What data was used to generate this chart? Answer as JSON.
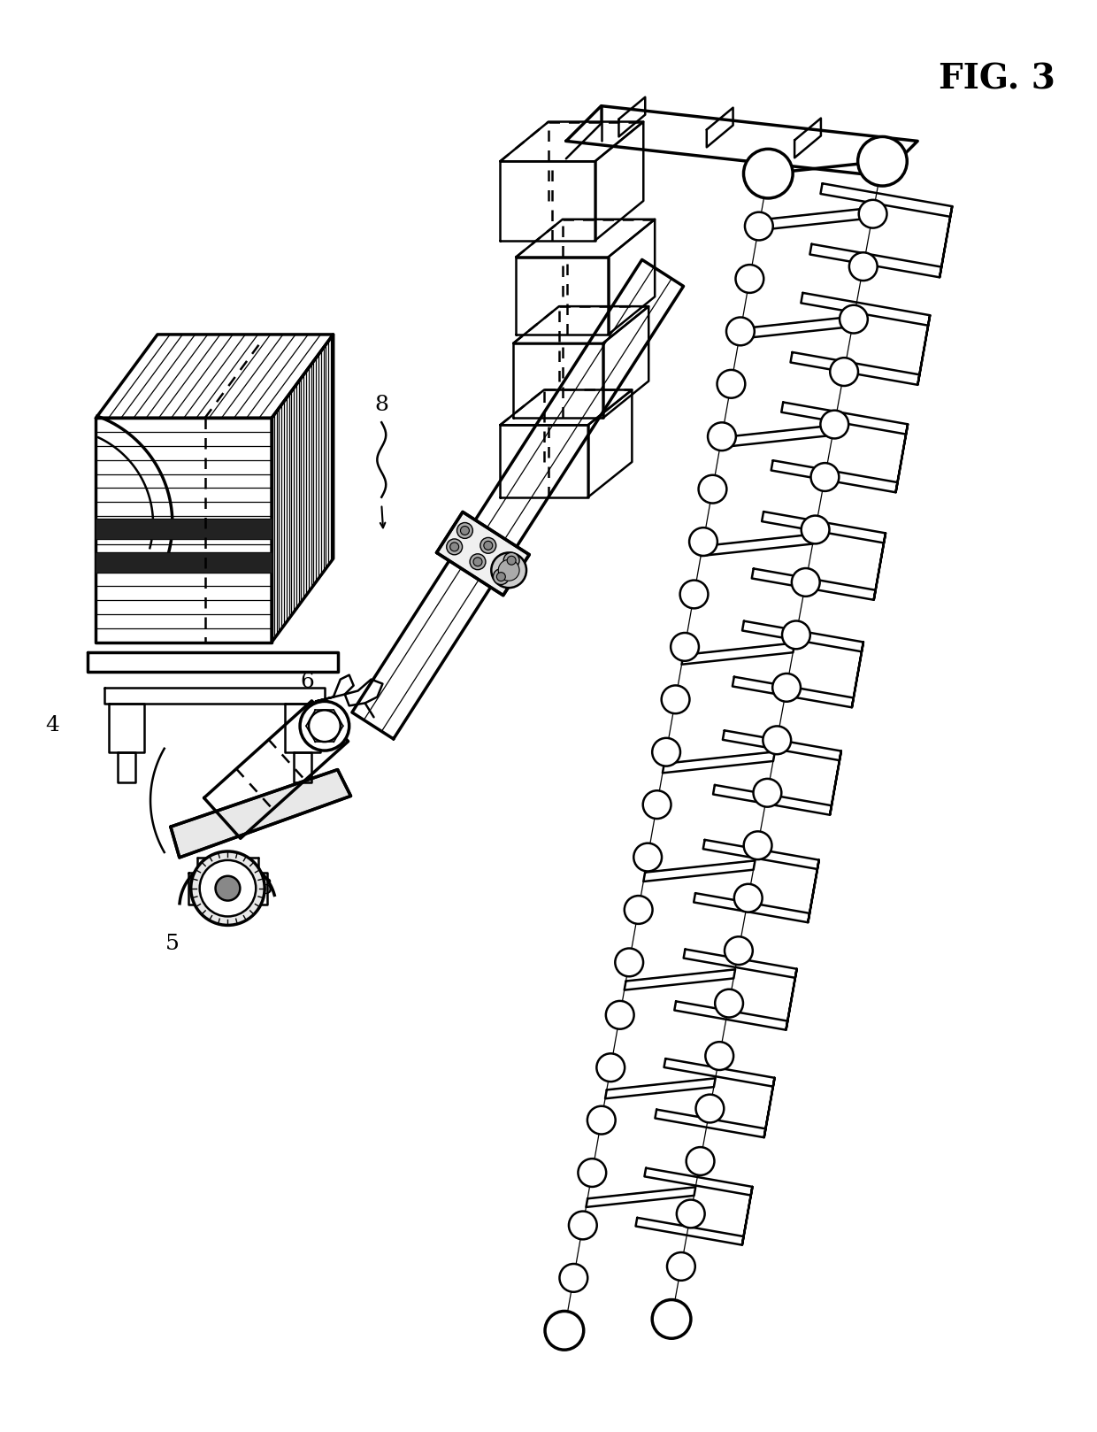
{
  "title": "FIG. 3",
  "bg_color": "#ffffff",
  "label_fontsize": 18,
  "title_fontsize": 28,
  "lw_main": 1.8,
  "lw_thick": 2.5,
  "lw_thin": 0.9
}
